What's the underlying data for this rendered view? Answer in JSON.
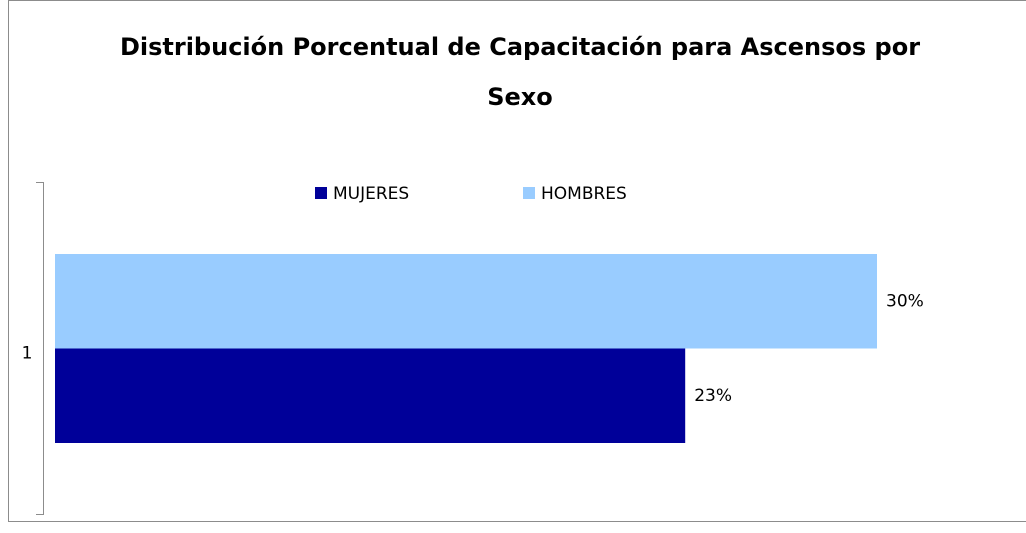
{
  "chart_data": {
    "type": "bar",
    "orientation": "horizontal",
    "title": "Distribución Porcentual de Capacitación para Ascensos por Sexo",
    "categories": [
      "1"
    ],
    "series": [
      {
        "name": "MUJERES",
        "color": "#000099",
        "values": [
          23
        ],
        "value_labels": [
          "23%"
        ]
      },
      {
        "name": "HOMBRES",
        "color": "#99ccff",
        "values": [
          30
        ],
        "value_labels": [
          "30%"
        ]
      }
    ],
    "xlim": [
      0,
      35
    ],
    "legend": "top"
  }
}
